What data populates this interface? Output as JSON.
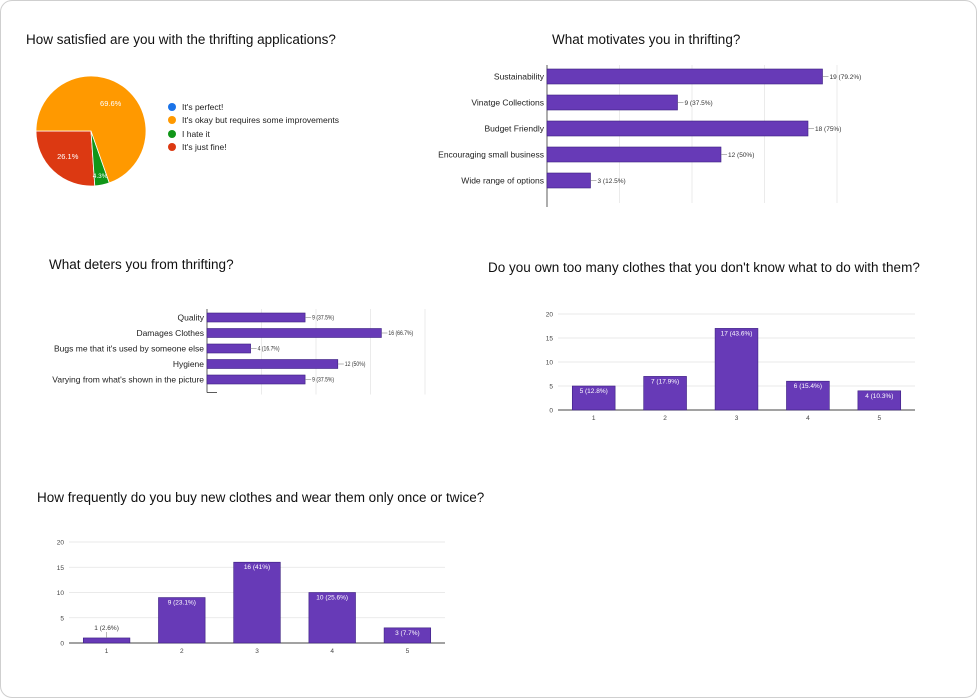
{
  "chart_data": [
    {
      "id": "satisfaction",
      "type": "pie",
      "title": "How satisfied are you with the thrifting applications?",
      "labels": [
        "It's perfect!",
        "It's okay but requires some improvements",
        "I hate it",
        "It's just fine!"
      ],
      "values": [
        0,
        69.6,
        4.3,
        26.1
      ],
      "slice_labels": [
        "",
        "69.6%",
        "4.3%",
        "26.1%"
      ],
      "colors": [
        "#1a73e8",
        "#ff9900",
        "#109618",
        "#dc3912"
      ],
      "legend": "right"
    },
    {
      "id": "motivates",
      "type": "bar",
      "orientation": "horizontal",
      "title": "What motivates you in thrifting?",
      "categories": [
        "Sustainability",
        "Vinatge Collections",
        "Budget Friendly",
        "Encouraging small business",
        "Wide range of options"
      ],
      "values": [
        19,
        9,
        18,
        12,
        3
      ],
      "data_labels": [
        "19 (79.2%)",
        "9 (37.5%)",
        "18 (75%)",
        "12 (50%)",
        "3 (12.5%)"
      ],
      "xlim": [
        0,
        20
      ],
      "color": "#673ab7"
    },
    {
      "id": "deters",
      "type": "bar",
      "orientation": "horizontal",
      "title": "What deters you from thrifting?",
      "categories": [
        "Quality",
        "Damages Clothes",
        "Bugs me that it's used by someone else",
        "Hygiene",
        "Varying from what's shown in the picture"
      ],
      "values": [
        9,
        16,
        4,
        12,
        9
      ],
      "data_labels": [
        "9 (37.5%)",
        "16 (66.7%)",
        "4 (16.7%)",
        "12 (50%)",
        "9 (37.5%)"
      ],
      "xlim": [
        0,
        20
      ],
      "color": "#673ab7"
    },
    {
      "id": "too_many",
      "type": "bar",
      "title": "Do you own too many clothes that you don't know what to do with them?",
      "categories": [
        "1",
        "2",
        "3",
        "4",
        "5"
      ],
      "values": [
        5,
        7,
        17,
        6,
        4
      ],
      "data_labels": [
        "5 (12.8%)",
        "7 (17.9%)",
        "17 (43.6%)",
        "6 (15.4%)",
        "4 (10.3%)"
      ],
      "ylim": [
        0,
        20
      ],
      "yticks": [
        0,
        5,
        10,
        15,
        20
      ],
      "grid": true,
      "color": "#673ab7"
    },
    {
      "id": "wear_once",
      "type": "bar",
      "title": "How frequently do you buy new clothes and wear them only once or twice?",
      "categories": [
        "1",
        "2",
        "3",
        "4",
        "5"
      ],
      "values": [
        1,
        9,
        16,
        10,
        3
      ],
      "data_labels": [
        "1 (2.6%)",
        "9 (23.1%)",
        "16 (41%)",
        "10 (25.6%)",
        "3 (7.7%)"
      ],
      "ylim": [
        0,
        20
      ],
      "yticks": [
        0,
        5,
        10,
        15,
        20
      ],
      "grid": true,
      "color": "#673ab7"
    }
  ]
}
